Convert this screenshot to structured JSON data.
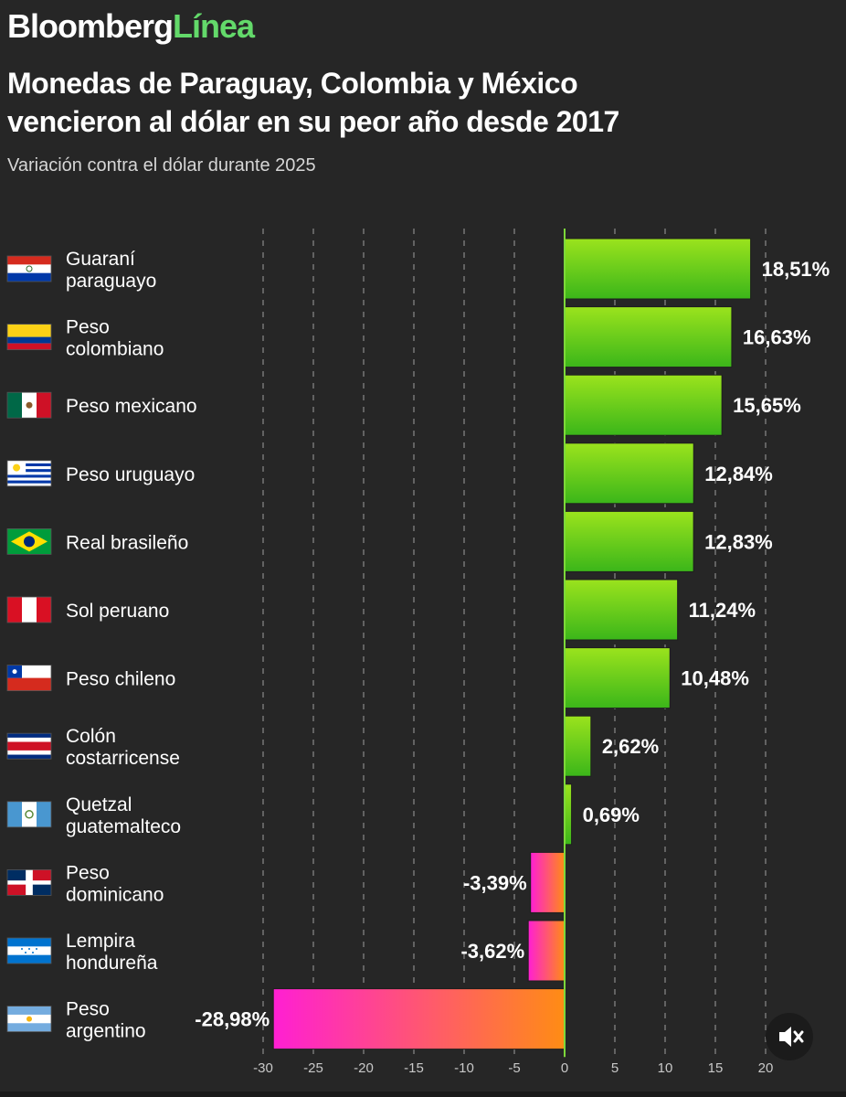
{
  "header": {
    "brand_main": "Bloomberg",
    "brand_accent": "Línea",
    "title_line1": "Monedas de Paraguay, Colombia y México",
    "title_line2": "vencieron al dólar en su peor año desde 2017",
    "subtitle": "Variación contra el dólar durante 2025"
  },
  "colors": {
    "background": "#262626",
    "positive_top": "#9be31d",
    "positive_bottom": "#3bb61a",
    "negative_left": "#ff1fd3",
    "negative_right": "#ff8c14",
    "accent": "#63d96a"
  },
  "chart_data": {
    "type": "bar",
    "orientation": "horizontal",
    "title": "Monedas de Paraguay, Colombia y México vencieron al dólar en su peor año desde 2017",
    "subtitle": "Variación contra el dólar durante 2025",
    "unit": "%",
    "xlim": [
      -30,
      20
    ],
    "xticks": [
      -30,
      -25,
      -20,
      -15,
      -10,
      -5,
      0,
      5,
      10,
      15,
      20
    ],
    "grid": true,
    "categories": [
      {
        "line1": "Guaraní",
        "line2": "paraguayo",
        "flag": "paraguay-flag"
      },
      {
        "line1": "Peso",
        "line2": "colombiano",
        "flag": "colombia-flag"
      },
      {
        "line1": "Peso mexicano",
        "line2": "",
        "flag": "mexico-flag"
      },
      {
        "line1": "Peso uruguayo",
        "line2": "",
        "flag": "uruguay-flag"
      },
      {
        "line1": "Real brasileño",
        "line2": "",
        "flag": "brazil-flag"
      },
      {
        "line1": "Sol peruano",
        "line2": "",
        "flag": "peru-flag"
      },
      {
        "line1": "Peso chileno",
        "line2": "",
        "flag": "chile-flag"
      },
      {
        "line1": "Colón",
        "line2": "costarricense",
        "flag": "costa-rica-flag"
      },
      {
        "line1": "Quetzal",
        "line2": "guatemalteco",
        "flag": "guatemala-flag"
      },
      {
        "line1": "Peso",
        "line2": "dominicano",
        "flag": "dominican-republic-flag"
      },
      {
        "line1": "Lempira",
        "line2": "hondureña",
        "flag": "honduras-flag"
      },
      {
        "line1": "Peso",
        "line2": "argentino",
        "flag": "argentina-flag"
      }
    ],
    "values": [
      18.51,
      16.63,
      15.65,
      12.84,
      12.83,
      11.24,
      10.48,
      2.62,
      0.69,
      -3.39,
      -3.62,
      -28.98
    ],
    "labels": [
      "18,51%",
      "16,63%",
      "15,65%",
      "12,84%",
      "12,83%",
      "11,24%",
      "10,48%",
      "2,62%",
      "0,69%",
      "-3,39%",
      "-3,62%",
      "-28,98%"
    ]
  }
}
